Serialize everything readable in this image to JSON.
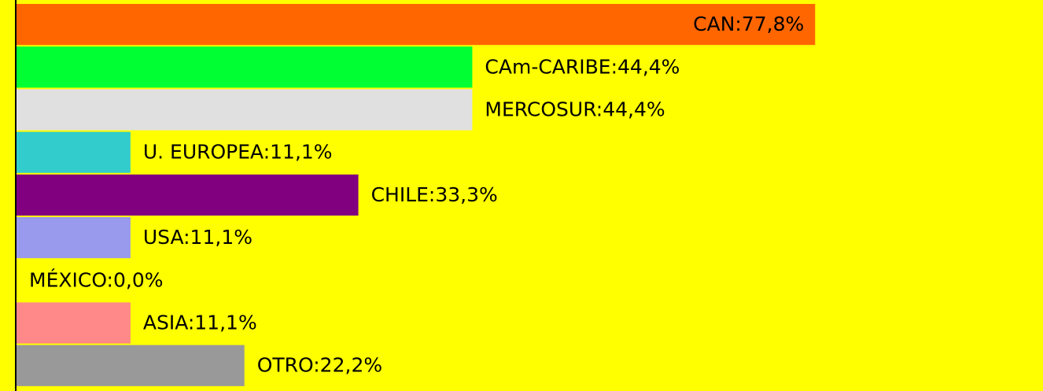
{
  "chart_data": {
    "type": "barh",
    "values": [
      77.8,
      44.4,
      44.4,
      11.1,
      33.3,
      11.1,
      0.0,
      11.1,
      22.2
    ],
    "value_labels": [
      "CAN:77,8%",
      "CAm-CARIBE:44,4%",
      "MERCOSUR:44,4%",
      "U. EUROPEA:11,1%",
      "CHILE:33,3%",
      "USA:11,1%",
      "MÉXICO:0,0%",
      "ASIA:11,1%",
      "OTRO:22,2%"
    ],
    "colors": [
      "#ff6600",
      "#00ff33",
      "#e0e0e0",
      "#33cccc",
      "#800080",
      "#9999ee",
      "#ffff00",
      "#ff8888",
      "#999999"
    ],
    "xlim": [
      0,
      100
    ]
  }
}
